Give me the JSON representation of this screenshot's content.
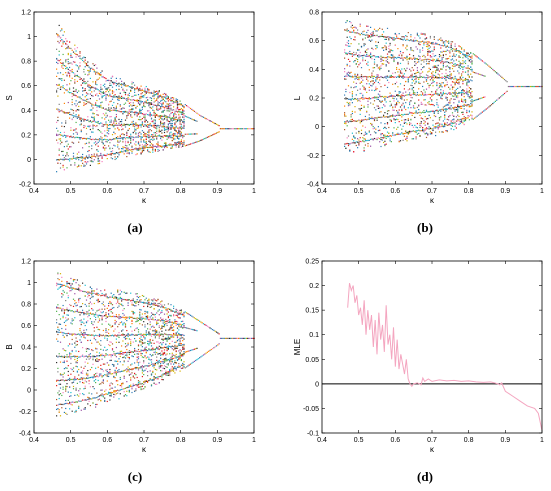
{
  "chart_data": [
    {
      "id": "a",
      "type": "scatter",
      "panel_label": "(a)",
      "title": "",
      "xlabel": "κ",
      "ylabel": "S",
      "xlim": [
        0.4,
        1.0
      ],
      "ylim": [
        -0.2,
        1.2
      ],
      "xticks": [
        "0.4",
        "0.5",
        "0.6",
        "0.7",
        "0.8",
        "0.9",
        "1"
      ],
      "yticks": [
        "-0.2",
        "0",
        "0.2",
        "0.4",
        "0.6",
        "0.8",
        "1",
        "1.2"
      ],
      "grid": false,
      "series": [
        {
          "kind": "bifurcation",
          "x_start": 0.46,
          "fixed_point": 0.25,
          "bifurcation_points": [
            0.905,
            0.845
          ],
          "envelope": [
            {
              "x": 0.46,
              "lo": -0.1,
              "hi": 1.12
            },
            {
              "x": 0.5,
              "lo": -0.08,
              "hi": 0.98
            },
            {
              "x": 0.55,
              "lo": -0.05,
              "hi": 0.82
            },
            {
              "x": 0.6,
              "lo": -0.02,
              "hi": 0.7
            },
            {
              "x": 0.65,
              "lo": 0.02,
              "hi": 0.65
            },
            {
              "x": 0.68,
              "lo": 0.04,
              "hi": 0.62
            },
            {
              "x": 0.7,
              "lo": 0.05,
              "hi": 0.6
            },
            {
              "x": 0.75,
              "lo": 0.07,
              "hi": 0.55
            },
            {
              "x": 0.8,
              "lo": 0.1,
              "hi": 0.47
            },
            {
              "x": 0.85,
              "lo": 0.15,
              "hi": 0.36
            },
            {
              "x": 0.9,
              "lo": 0.22,
              "hi": 0.28
            },
            {
              "x": 0.92,
              "lo": 0.25,
              "hi": 0.25
            },
            {
              "x": 1.0,
              "lo": 0.25,
              "hi": 0.25
            }
          ]
        }
      ]
    },
    {
      "id": "b",
      "type": "scatter",
      "panel_label": "(b)",
      "title": "",
      "xlabel": "κ",
      "ylabel": "L",
      "xlim": [
        0.4,
        1.0
      ],
      "ylim": [
        -0.4,
        0.8
      ],
      "xticks": [
        "0.4",
        "0.5",
        "0.6",
        "0.7",
        "0.8",
        "0.9",
        "1"
      ],
      "yticks": [
        "-0.4",
        "-0.2",
        "0",
        "0.2",
        "0.4",
        "0.6",
        "0.8"
      ],
      "grid": false,
      "series": [
        {
          "kind": "bifurcation",
          "x_start": 0.46,
          "fixed_point": 0.28,
          "bifurcation_points": [
            0.905,
            0.845
          ],
          "envelope": [
            {
              "x": 0.46,
              "lo": -0.2,
              "hi": 0.75
            },
            {
              "x": 0.5,
              "lo": -0.18,
              "hi": 0.72
            },
            {
              "x": 0.55,
              "lo": -0.15,
              "hi": 0.7
            },
            {
              "x": 0.6,
              "lo": -0.12,
              "hi": 0.68
            },
            {
              "x": 0.65,
              "lo": -0.09,
              "hi": 0.66
            },
            {
              "x": 0.7,
              "lo": -0.07,
              "hi": 0.64
            },
            {
              "x": 0.75,
              "lo": -0.03,
              "hi": 0.6
            },
            {
              "x": 0.8,
              "lo": 0.03,
              "hi": 0.53
            },
            {
              "x": 0.85,
              "lo": 0.13,
              "hi": 0.43
            },
            {
              "x": 0.9,
              "lo": 0.24,
              "hi": 0.32
            },
            {
              "x": 0.92,
              "lo": 0.28,
              "hi": 0.28
            },
            {
              "x": 1.0,
              "lo": 0.28,
              "hi": 0.28
            }
          ]
        }
      ]
    },
    {
      "id": "c",
      "type": "scatter",
      "panel_label": "(c)",
      "title": "",
      "xlabel": "κ",
      "ylabel": "B",
      "xlim": [
        0.4,
        1.0
      ],
      "ylim": [
        -0.4,
        1.2
      ],
      "xticks": [
        "0.4",
        "0.5",
        "0.6",
        "0.7",
        "0.8",
        "0.9",
        "1"
      ],
      "yticks": [
        "-0.4",
        "-0.2",
        "0",
        "0.2",
        "0.4",
        "0.6",
        "0.8",
        "1",
        "1.2"
      ],
      "grid": false,
      "series": [
        {
          "kind": "bifurcation",
          "x_start": 0.46,
          "fixed_point": 0.48,
          "bifurcation_points": [
            0.905,
            0.845
          ],
          "envelope": [
            {
              "x": 0.46,
              "lo": -0.25,
              "hi": 1.1
            },
            {
              "x": 0.5,
              "lo": -0.22,
              "hi": 1.05
            },
            {
              "x": 0.55,
              "lo": -0.18,
              "hi": 1.0
            },
            {
              "x": 0.6,
              "lo": -0.12,
              "hi": 0.95
            },
            {
              "x": 0.65,
              "lo": -0.06,
              "hi": 0.92
            },
            {
              "x": 0.7,
              "lo": 0.0,
              "hi": 0.88
            },
            {
              "x": 0.75,
              "lo": 0.08,
              "hi": 0.83
            },
            {
              "x": 0.8,
              "lo": 0.18,
              "hi": 0.75
            },
            {
              "x": 0.85,
              "lo": 0.3,
              "hi": 0.64
            },
            {
              "x": 0.9,
              "lo": 0.42,
              "hi": 0.53
            },
            {
              "x": 0.92,
              "lo": 0.48,
              "hi": 0.48
            },
            {
              "x": 1.0,
              "lo": 0.48,
              "hi": 0.48
            }
          ]
        }
      ]
    },
    {
      "id": "d",
      "type": "line",
      "panel_label": "(d)",
      "title": "",
      "xlabel": "κ",
      "ylabel": "MLE",
      "xlim": [
        0.4,
        1.0
      ],
      "ylim": [
        -0.1,
        0.25
      ],
      "xticks": [
        "0.4",
        "0.5",
        "0.6",
        "0.7",
        "0.8",
        "0.9",
        "1"
      ],
      "yticks": [
        "-0.1",
        "-0.05",
        "0",
        "0.05",
        "0.1",
        "0.15",
        "0.2",
        "0.25"
      ],
      "grid": false,
      "zero_line": true,
      "series": [
        {
          "color": "#f4a6c0",
          "x": [
            0.47,
            0.475,
            0.48,
            0.485,
            0.49,
            0.495,
            0.5,
            0.505,
            0.51,
            0.515,
            0.52,
            0.525,
            0.53,
            0.535,
            0.54,
            0.545,
            0.55,
            0.555,
            0.56,
            0.565,
            0.57,
            0.575,
            0.58,
            0.585,
            0.59,
            0.595,
            0.6,
            0.605,
            0.61,
            0.615,
            0.62,
            0.625,
            0.63,
            0.635,
            0.64,
            0.645,
            0.65,
            0.66,
            0.67,
            0.675,
            0.68,
            0.69,
            0.7,
            0.72,
            0.74,
            0.76,
            0.78,
            0.8,
            0.82,
            0.84,
            0.86,
            0.87,
            0.88,
            0.885,
            0.89,
            0.9,
            0.92,
            0.94,
            0.96,
            0.98,
            0.99,
            1.0
          ],
          "y": [
            0.155,
            0.205,
            0.19,
            0.2,
            0.165,
            0.18,
            0.14,
            0.155,
            0.12,
            0.17,
            0.1,
            0.15,
            0.11,
            0.14,
            0.075,
            0.13,
            0.06,
            0.145,
            0.09,
            0.12,
            0.065,
            0.16,
            0.08,
            0.1,
            0.05,
            0.115,
            0.035,
            0.09,
            0.03,
            0.06,
            0.04,
            0.02,
            0.05,
            0.01,
            0.0,
            -0.005,
            0.0,
            0.002,
            -0.002,
            0.012,
            0.005,
            0.01,
            0.005,
            0.008,
            0.006,
            0.007,
            0.005,
            0.006,
            0.004,
            0.003,
            0.004,
            0.002,
            0.0,
            -0.002,
            0.002,
            -0.015,
            -0.025,
            -0.035,
            -0.045,
            -0.05,
            -0.06,
            -0.095
          ]
        }
      ]
    }
  ]
}
